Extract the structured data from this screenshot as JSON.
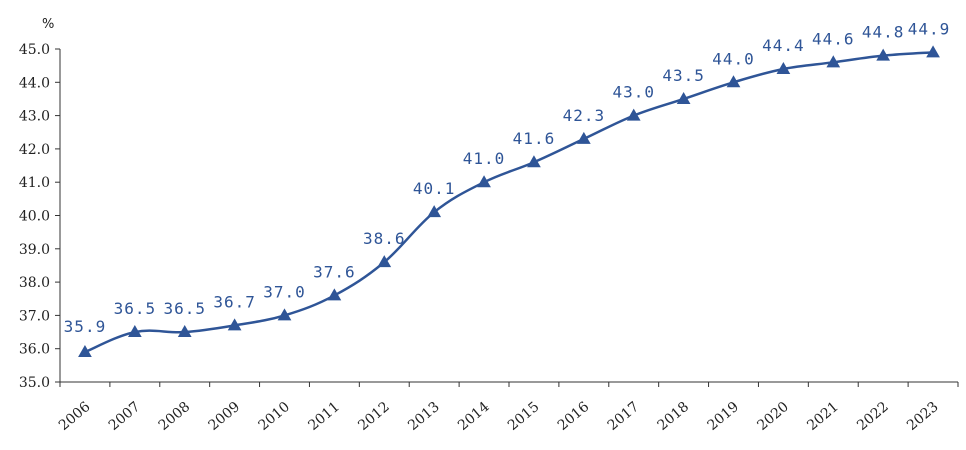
{
  "chart_data": {
    "type": "line",
    "title": "",
    "xlabel": "",
    "ylabel": "",
    "unit": "%",
    "ylim": [
      35.0,
      45.0
    ],
    "yticks": [
      "35.0",
      "36.0",
      "37.0",
      "38.0",
      "39.0",
      "40.0",
      "41.0",
      "42.0",
      "43.0",
      "44.0",
      "45.0"
    ],
    "categories": [
      "2006",
      "2007",
      "2008",
      "2009",
      "2010",
      "2011",
      "2012",
      "2013",
      "2014",
      "2015",
      "2016",
      "2017",
      "2018",
      "2019",
      "2020",
      "2021",
      "2022",
      "2023"
    ],
    "series": [
      {
        "values": [
          35.9,
          36.5,
          36.5,
          36.7,
          37.0,
          37.6,
          38.6,
          40.1,
          41.0,
          41.6,
          42.3,
          43.0,
          43.5,
          44.0,
          44.4,
          44.6,
          44.8,
          44.9
        ],
        "labels": [
          "35.9",
          "36.5",
          "36.5",
          "36.7",
          "37.0",
          "37.6",
          "38.6",
          "40.1",
          "41.0",
          "41.6",
          "42.3",
          "43.0",
          "43.5",
          "44.0",
          "44.4",
          "44.6",
          "44.8",
          "44.9"
        ],
        "color": "#2f5597",
        "marker": "triangle"
      }
    ],
    "grid": false,
    "legend": "none"
  }
}
